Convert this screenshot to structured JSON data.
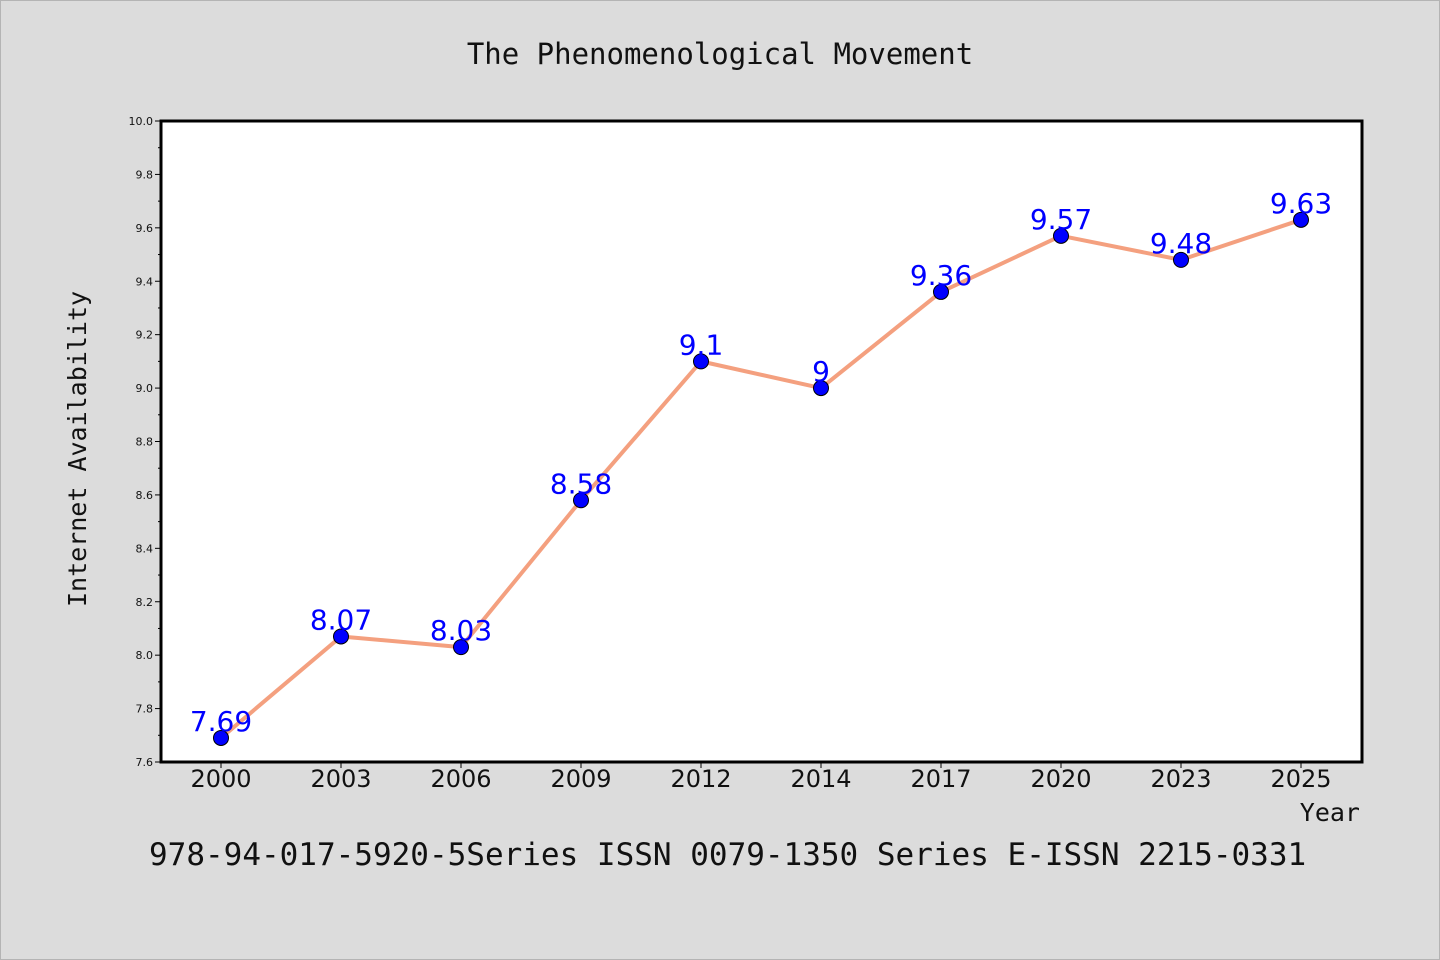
{
  "chart_data": {
    "type": "line",
    "title": "The Phenomenological Movement",
    "xlabel": "Year",
    "ylabel": "Internet Availability",
    "categories": [
      "2000",
      "2003",
      "2006",
      "2009",
      "2012",
      "2014",
      "2017",
      "2020",
      "2023",
      "2025"
    ],
    "series": [
      {
        "values": [
          7.69,
          8.07,
          8.03,
          8.58,
          9.1,
          9.0,
          9.36,
          9.57,
          9.48,
          9.63
        ],
        "data_labels": [
          "7.69",
          "8.07",
          "8.03",
          "8.58",
          "9.1",
          "9",
          "9.36",
          "9.57",
          "9.48",
          "9.63"
        ],
        "line_color": "#f4a07f",
        "marker_color": "#0000ff"
      }
    ],
    "ylim": [
      7.6,
      10.0
    ],
    "yticks": [
      "7.6",
      "7.8",
      "8.0",
      "8.2",
      "8.4",
      "8.6",
      "8.8",
      "9.0",
      "9.2",
      "9.4",
      "9.6",
      "9.8",
      "10.0"
    ],
    "grid": false,
    "legend": "none"
  },
  "footer": "978-94-017-5920-5Series ISSN 0079-1350 Series E-ISSN 2215-0331",
  "colors": {
    "background": "#dcdcdc",
    "plot_area": "#ffffff",
    "label_color": "#0000ff"
  }
}
